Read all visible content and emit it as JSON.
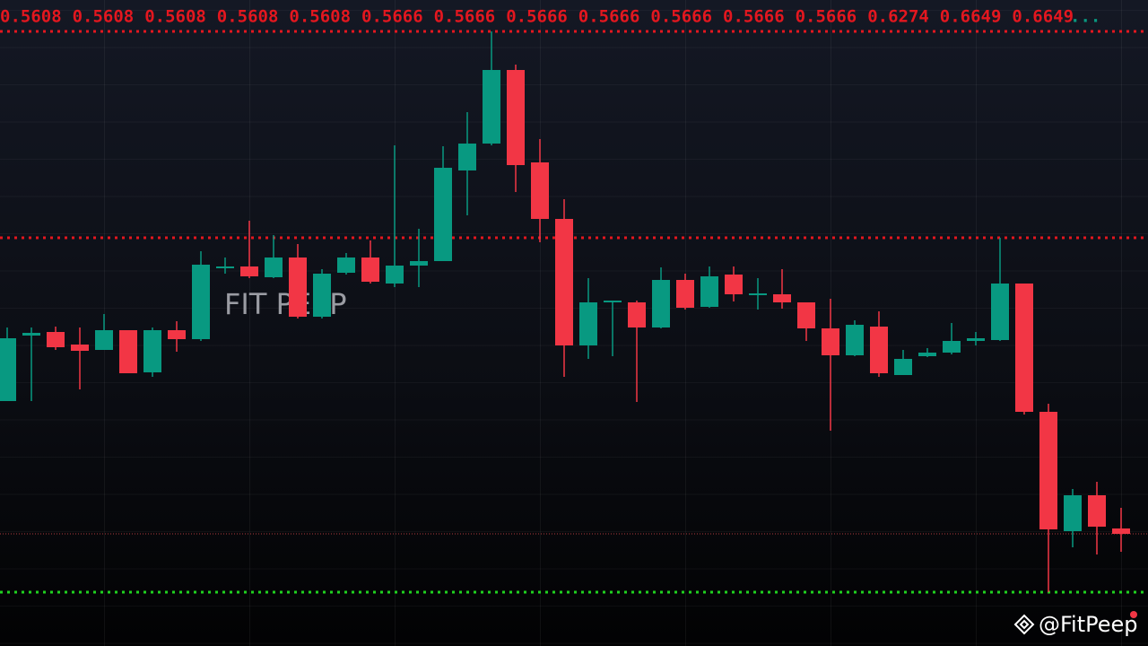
{
  "chart_data": {
    "type": "candlestick",
    "ylim": [
      0,
      720
    ],
    "up_color": "#089981",
    "down_color": "#f23645",
    "top_labels": [
      "0.5608",
      "0.5608",
      "0.5608",
      "0.5608",
      "0.5608",
      "0.5666",
      "0.5666",
      "0.5666",
      "0.5666",
      "0.5666",
      "0.5666",
      "0.5666",
      "0.6274",
      "0.6649",
      "0.6649"
    ],
    "top_labels_more": "...",
    "watermark": "FIT PEEP",
    "credit": "@FitPeep",
    "levels": [
      {
        "value": 685,
        "color": "#e3171f",
        "style": "dotted"
      },
      {
        "value": 455,
        "color": "#e3171f",
        "style": "dotted"
      },
      {
        "value": 125,
        "color": "#b03a3f",
        "style": "thin"
      },
      {
        "value": 60,
        "color": "#1fd11f",
        "style": "dotted"
      }
    ],
    "series": {
      "open": [
        273,
        346,
        350,
        336,
        330,
        352,
        305,
        352,
        342,
        421,
        423,
        411,
        433,
        367,
        416,
        433,
        404,
        424,
        429,
        530,
        560,
        642,
        539,
        476,
        335,
        383,
        383,
        355,
        408,
        378,
        414,
        391,
        392,
        383,
        354,
        324,
        356,
        302,
        323,
        327,
        340,
        341,
        404,
        261,
        128,
        168,
        131
      ],
      "high": [
        355,
        355,
        356,
        355,
        370,
        352,
        355,
        362,
        440,
        433,
        474,
        458,
        448,
        420,
        438,
        452,
        558,
        465,
        557,
        595,
        685,
        648,
        565,
        498,
        410,
        385,
        385,
        422,
        415,
        423,
        423,
        410,
        420,
        383,
        387,
        363,
        373,
        330,
        332,
        360,
        350,
        455,
        404,
        270,
        175,
        183,
        154
      ],
      "low": [
        273,
        273,
        330,
        286,
        330,
        304,
        300,
        328,
        340,
        415,
        410,
        410,
        365,
        365,
        414,
        404,
        400,
        400,
        429,
        480,
        558,
        506,
        450,
        300,
        320,
        323,
        272,
        354,
        375,
        377,
        384,
        375,
        376,
        340,
        240,
        323,
        300,
        302,
        322,
        325,
        335,
        340,
        258,
        60,
        110,
        102,
        105
      ],
      "close": [
        343,
        349,
        333,
        329,
        352,
        304,
        352,
        342,
        425,
        423,
        412,
        433,
        367,
        415,
        433,
        406,
        424,
        429,
        533,
        560,
        642,
        536,
        476,
        335,
        383,
        385,
        355,
        408,
        377,
        412,
        392,
        393,
        383,
        354,
        324,
        358,
        304,
        320,
        327,
        340,
        343,
        404,
        261,
        130,
        168,
        133,
        125
      ]
    }
  }
}
